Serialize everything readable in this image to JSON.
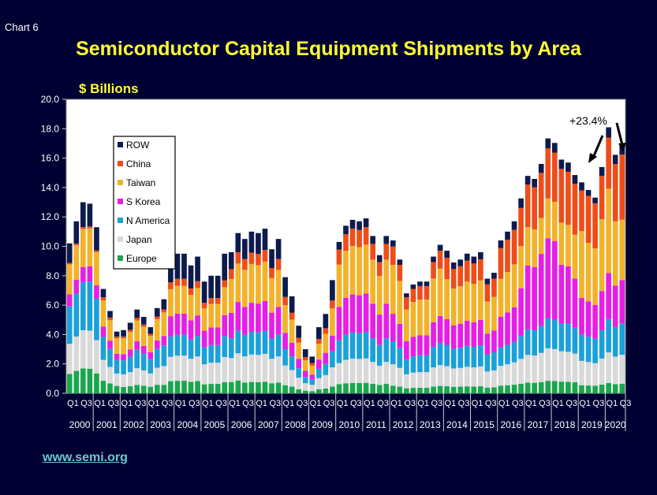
{
  "chart_label": "Chart 6",
  "website": "www.semi.org",
  "chart_data": {
    "type": "bar",
    "stacked": true,
    "title": "Semiconductor Capital Equipment Shipments by Area",
    "ylabel": "$ Billions",
    "xlabel": "",
    "ylim": [
      0,
      20
    ],
    "yticks": [
      "0.0",
      "2.0",
      "4.0",
      "6.0",
      "8.0",
      "10.0",
      "12.0",
      "14.0",
      "16.0",
      "18.0",
      "20.0"
    ],
    "grid": false,
    "legend_position": "top-left",
    "quarter_labels": [
      "Q1",
      "Q3"
    ],
    "years": [
      "2000",
      "2001",
      "2002",
      "2003",
      "2004",
      "2005",
      "2006",
      "2007",
      "2008",
      "2009",
      "2010",
      "2011",
      "2012",
      "2013",
      "2014",
      "2015",
      "2016",
      "2017",
      "2018",
      "2019",
      "2020"
    ],
    "series_colors": {
      "Europe": "#1aa64d",
      "Japan": "#d9d9d9",
      "N America": "#1ba1d9",
      "S Korea": "#e61ee6",
      "Taiwan": "#f2b22a",
      "China": "#ee4d1a",
      "ROW": "#0d1a4d"
    },
    "legend": [
      "ROW",
      "China",
      "Taiwan",
      "S Korea",
      "N America",
      "Japan",
      "Europe"
    ],
    "totals": [
      10.2,
      11.7,
      13.0,
      12.9,
      11.3,
      7.1,
      5.6,
      4.2,
      4.3,
      4.8,
      5.7,
      5.2,
      4.5,
      5.8,
      6.4,
      9.2,
      9.5,
      9.5,
      8.7,
      9.3,
      7.6,
      8.0,
      8.0,
      9.5,
      9.6,
      10.9,
      10.5,
      11.0,
      10.9,
      11.2,
      9.8,
      10.5,
      7.9,
      6.6,
      4.6,
      3.0,
      2.5,
      4.5,
      5.4,
      7.7,
      10.3,
      11.4,
      11.8,
      11.7,
      11.9,
      10.7,
      9.4,
      10.7,
      10.4,
      9.1,
      6.8,
      7.4,
      7.6,
      7.6,
      9.3,
      10.1,
      9.7,
      8.9,
      9.1,
      9.5,
      9.3,
      9.6,
      7.8,
      8.2,
      10.4,
      11.0,
      11.7,
      13.0,
      14.5,
      14.3,
      15.3,
      17.0,
      16.7,
      15.9,
      15.7,
      15.0,
      13.8,
      13.3,
      12.8,
      14.8,
      17.4,
      15.6,
      16.4
    ],
    "series": [
      {
        "name": "Europe",
        "share": [
          0.13,
          0.13,
          0.13,
          0.13,
          0.12,
          0.12,
          0.12,
          0.12,
          0.1,
          0.1,
          0.1,
          0.1,
          0.1,
          0.1,
          0.09,
          0.09,
          0.09,
          0.09,
          0.09,
          0.09,
          0.08,
          0.08,
          0.08,
          0.08,
          0.08,
          0.08,
          0.07,
          0.07,
          0.07,
          0.07,
          0.07,
          0.07,
          0.07,
          0.07,
          0.06,
          0.06,
          0.06,
          0.06,
          0.06,
          0.06,
          0.06,
          0.06,
          0.06,
          0.06,
          0.06,
          0.06,
          0.06,
          0.06,
          0.05,
          0.05,
          0.05,
          0.05,
          0.05,
          0.05,
          0.05,
          0.05,
          0.05,
          0.05,
          0.05,
          0.05,
          0.05,
          0.05,
          0.05,
          0.05,
          0.05,
          0.05,
          0.05,
          0.05,
          0.05,
          0.05,
          0.05,
          0.05,
          0.05,
          0.05,
          0.05,
          0.05,
          0.04,
          0.04,
          0.04,
          0.04,
          0.04,
          0.04,
          0.04
        ]
      },
      {
        "name": "Japan",
        "share": [
          0.2,
          0.2,
          0.2,
          0.2,
          0.2,
          0.2,
          0.2,
          0.2,
          0.2,
          0.2,
          0.2,
          0.2,
          0.2,
          0.2,
          0.2,
          0.18,
          0.18,
          0.18,
          0.18,
          0.18,
          0.18,
          0.18,
          0.18,
          0.18,
          0.17,
          0.17,
          0.17,
          0.17,
          0.17,
          0.17,
          0.17,
          0.17,
          0.17,
          0.17,
          0.17,
          0.17,
          0.17,
          0.17,
          0.17,
          0.17,
          0.14,
          0.14,
          0.14,
          0.14,
          0.14,
          0.14,
          0.14,
          0.14,
          0.14,
          0.14,
          0.14,
          0.14,
          0.14,
          0.14,
          0.14,
          0.14,
          0.14,
          0.14,
          0.14,
          0.14,
          0.14,
          0.14,
          0.14,
          0.14,
          0.13,
          0.13,
          0.13,
          0.13,
          0.13,
          0.13,
          0.13,
          0.13,
          0.13,
          0.13,
          0.13,
          0.13,
          0.12,
          0.12,
          0.12,
          0.12,
          0.12,
          0.12,
          0.12
        ]
      },
      {
        "name": "N America",
        "share": [
          0.25,
          0.25,
          0.25,
          0.26,
          0.25,
          0.22,
          0.22,
          0.22,
          0.22,
          0.22,
          0.22,
          0.22,
          0.22,
          0.22,
          0.22,
          0.15,
          0.15,
          0.15,
          0.15,
          0.15,
          0.15,
          0.15,
          0.15,
          0.15,
          0.14,
          0.14,
          0.14,
          0.14,
          0.14,
          0.14,
          0.14,
          0.14,
          0.14,
          0.14,
          0.14,
          0.14,
          0.14,
          0.14,
          0.14,
          0.14,
          0.15,
          0.15,
          0.15,
          0.15,
          0.15,
          0.15,
          0.15,
          0.15,
          0.15,
          0.15,
          0.15,
          0.15,
          0.15,
          0.15,
          0.15,
          0.15,
          0.15,
          0.15,
          0.15,
          0.15,
          0.15,
          0.15,
          0.15,
          0.15,
          0.12,
          0.12,
          0.12,
          0.12,
          0.12,
          0.12,
          0.12,
          0.12,
          0.12,
          0.12,
          0.12,
          0.12,
          0.13,
          0.13,
          0.13,
          0.13,
          0.13,
          0.13,
          0.13
        ]
      },
      {
        "name": "S Korea",
        "share": [
          0.08,
          0.08,
          0.08,
          0.08,
          0.08,
          0.1,
          0.1,
          0.1,
          0.1,
          0.1,
          0.1,
          0.1,
          0.1,
          0.1,
          0.1,
          0.15,
          0.15,
          0.15,
          0.15,
          0.15,
          0.15,
          0.15,
          0.15,
          0.15,
          0.18,
          0.18,
          0.18,
          0.18,
          0.18,
          0.18,
          0.18,
          0.18,
          0.14,
          0.14,
          0.14,
          0.14,
          0.14,
          0.14,
          0.14,
          0.14,
          0.22,
          0.22,
          0.22,
          0.22,
          0.22,
          0.22,
          0.22,
          0.22,
          0.18,
          0.18,
          0.18,
          0.18,
          0.18,
          0.18,
          0.18,
          0.18,
          0.18,
          0.18,
          0.18,
          0.18,
          0.18,
          0.18,
          0.18,
          0.18,
          0.2,
          0.2,
          0.2,
          0.25,
          0.3,
          0.3,
          0.32,
          0.32,
          0.32,
          0.25,
          0.25,
          0.22,
          0.18,
          0.18,
          0.18,
          0.18,
          0.18,
          0.18,
          0.18
        ]
      },
      {
        "name": "Taiwan",
        "share": [
          0.2,
          0.2,
          0.2,
          0.2,
          0.2,
          0.25,
          0.25,
          0.25,
          0.25,
          0.25,
          0.25,
          0.25,
          0.25,
          0.25,
          0.25,
          0.2,
          0.2,
          0.2,
          0.2,
          0.2,
          0.2,
          0.2,
          0.2,
          0.2,
          0.24,
          0.24,
          0.24,
          0.24,
          0.24,
          0.24,
          0.24,
          0.24,
          0.24,
          0.24,
          0.24,
          0.24,
          0.24,
          0.24,
          0.24,
          0.24,
          0.28,
          0.28,
          0.28,
          0.28,
          0.28,
          0.28,
          0.28,
          0.28,
          0.32,
          0.32,
          0.32,
          0.32,
          0.32,
          0.32,
          0.32,
          0.32,
          0.28,
          0.28,
          0.28,
          0.28,
          0.28,
          0.28,
          0.28,
          0.28,
          0.25,
          0.25,
          0.25,
          0.22,
          0.18,
          0.18,
          0.16,
          0.16,
          0.16,
          0.18,
          0.18,
          0.2,
          0.33,
          0.3,
          0.3,
          0.33,
          0.33,
          0.28,
          0.25
        ]
      },
      {
        "name": "China",
        "share": [
          0.01,
          0.01,
          0.01,
          0.01,
          0.01,
          0.03,
          0.03,
          0.03,
          0.03,
          0.03,
          0.03,
          0.03,
          0.03,
          0.03,
          0.03,
          0.05,
          0.05,
          0.05,
          0.05,
          0.05,
          0.05,
          0.05,
          0.05,
          0.05,
          0.07,
          0.07,
          0.07,
          0.07,
          0.07,
          0.07,
          0.07,
          0.07,
          0.07,
          0.07,
          0.07,
          0.07,
          0.07,
          0.07,
          0.07,
          0.07,
          0.1,
          0.1,
          0.1,
          0.1,
          0.1,
          0.1,
          0.1,
          0.1,
          0.12,
          0.12,
          0.12,
          0.12,
          0.12,
          0.12,
          0.12,
          0.12,
          0.15,
          0.15,
          0.15,
          0.15,
          0.15,
          0.15,
          0.15,
          0.15,
          0.2,
          0.2,
          0.2,
          0.2,
          0.2,
          0.2,
          0.2,
          0.2,
          0.2,
          0.23,
          0.23,
          0.23,
          0.2,
          0.24,
          0.24,
          0.2,
          0.2,
          0.25,
          0.27
        ]
      },
      {
        "name": "ROW",
        "share": [
          0.13,
          0.13,
          0.13,
          0.12,
          0.14,
          0.08,
          0.08,
          0.08,
          0.1,
          0.1,
          0.1,
          0.1,
          0.1,
          0.1,
          0.11,
          0.18,
          0.18,
          0.18,
          0.18,
          0.18,
          0.19,
          0.19,
          0.19,
          0.19,
          0.12,
          0.12,
          0.13,
          0.13,
          0.13,
          0.13,
          0.13,
          0.13,
          0.17,
          0.17,
          0.18,
          0.18,
          0.18,
          0.18,
          0.18,
          0.18,
          0.05,
          0.05,
          0.05,
          0.05,
          0.05,
          0.05,
          0.05,
          0.05,
          0.04,
          0.04,
          0.04,
          0.04,
          0.04,
          0.04,
          0.04,
          0.04,
          0.05,
          0.05,
          0.05,
          0.05,
          0.05,
          0.05,
          0.05,
          0.05,
          0.05,
          0.05,
          0.05,
          0.05,
          0.04,
          0.04,
          0.04,
          0.04,
          0.04,
          0.04,
          0.04,
          0.04,
          0.04,
          0.03,
          0.03,
          0.04,
          0.04,
          0.04,
          0.04
        ]
      }
    ],
    "annotation": "+23.4%"
  }
}
